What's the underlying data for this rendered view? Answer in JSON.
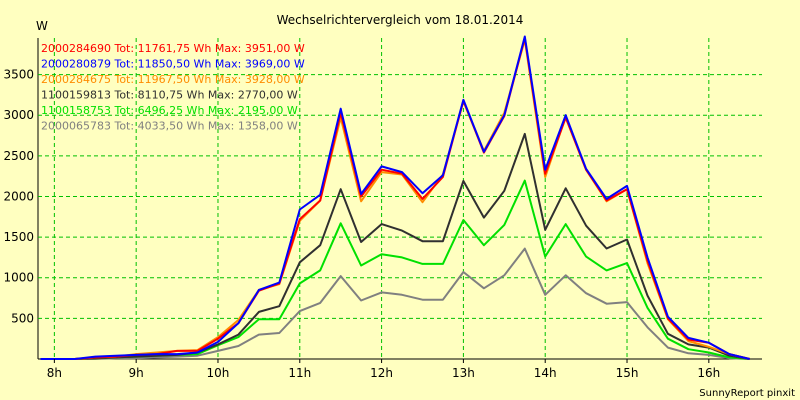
{
  "chart_data": {
    "type": "line",
    "title": "Wechselrichtervergleich vom 18.01.2014",
    "ylabel": "W",
    "xlabel": "",
    "xlim": [
      7.8,
      16.65
    ],
    "ylim": [
      0,
      3950
    ],
    "x_ticks": [
      {
        "value": 8,
        "label": "8h"
      },
      {
        "value": 9,
        "label": "9h"
      },
      {
        "value": 10,
        "label": "10h"
      },
      {
        "value": 11,
        "label": "11h"
      },
      {
        "value": 12,
        "label": "12h"
      },
      {
        "value": 13,
        "label": "13h"
      },
      {
        "value": 14,
        "label": "14h"
      },
      {
        "value": 15,
        "label": "15h"
      },
      {
        "value": 16,
        "label": "16h"
      }
    ],
    "y_ticks": [
      500,
      1000,
      1500,
      2000,
      2500,
      3000,
      3500
    ],
    "y_tick_labels": [
      "500",
      "1000",
      "1500",
      "2000",
      "2500",
      "3000",
      "3500"
    ],
    "grid": true,
    "legend_position": "top-left",
    "x": [
      7.83,
      8.0,
      8.25,
      8.5,
      8.75,
      9.0,
      9.25,
      9.5,
      9.75,
      10.0,
      10.25,
      10.5,
      10.75,
      11.0,
      11.25,
      11.5,
      11.75,
      12.0,
      12.25,
      12.5,
      12.75,
      13.0,
      13.25,
      13.5,
      13.75,
      14.0,
      14.25,
      14.5,
      14.75,
      15.0,
      15.25,
      15.5,
      15.75,
      16.0,
      16.25,
      16.5
    ],
    "series": [
      {
        "name": "2000284690 Tot: 11761,75 Wh Max: 3951,00 W",
        "color": "#ff0000",
        "values": [
          0,
          0,
          0,
          20,
          30,
          50,
          60,
          100,
          100,
          250,
          440,
          840,
          930,
          1720,
          1950,
          3030,
          2000,
          2330,
          2280,
          1970,
          2240,
          3180,
          2540,
          2990,
          3951,
          2280,
          2970,
          2330,
          1950,
          2090,
          1210,
          500,
          240,
          200,
          60,
          0
        ]
      },
      {
        "name": "2000280879 Tot: 11850,50 Wh Max: 3969,00 W",
        "color": "#0000ff",
        "values": [
          0,
          0,
          0,
          30,
          40,
          50,
          60,
          60,
          80,
          210,
          440,
          850,
          940,
          1840,
          2020,
          3080,
          2030,
          2370,
          2300,
          2040,
          2260,
          3190,
          2550,
          3000,
          3969,
          2330,
          3000,
          2340,
          1970,
          2130,
          1250,
          520,
          260,
          200,
          60,
          0
        ]
      },
      {
        "name": "2000284675 Tot: 11967,50 Wh Max: 3928,00 W",
        "color": "#ff8c00",
        "values": [
          0,
          0,
          0,
          20,
          30,
          60,
          80,
          100,
          110,
          270,
          480,
          850,
          920,
          1700,
          1950,
          2970,
          1940,
          2300,
          2270,
          1930,
          2270,
          3170,
          2560,
          3030,
          3928,
          2240,
          2980,
          2330,
          1940,
          2090,
          1180,
          490,
          220,
          150,
          60,
          0
        ]
      },
      {
        "name": "1100159813 Tot: 8110,75 Wh Max: 2770,00 W",
        "color": "#303030",
        "values": [
          0,
          0,
          0,
          10,
          20,
          30,
          40,
          50,
          80,
          180,
          300,
          580,
          650,
          1190,
          1400,
          2090,
          1440,
          1660,
          1580,
          1450,
          1450,
          2190,
          1740,
          2070,
          2770,
          1590,
          2100,
          1640,
          1360,
          1470,
          780,
          310,
          180,
          140,
          40,
          0
        ]
      },
      {
        "name": "1100158753 Tot: 6496,25 Wh Max: 2195,00 W",
        "color": "#00e000",
        "values": [
          0,
          0,
          0,
          10,
          20,
          30,
          40,
          50,
          60,
          170,
          270,
          490,
          490,
          930,
          1090,
          1670,
          1150,
          1290,
          1250,
          1170,
          1170,
          1710,
          1400,
          1650,
          2195,
          1260,
          1660,
          1260,
          1090,
          1180,
          630,
          250,
          120,
          80,
          20,
          0
        ]
      },
      {
        "name": "2000065783 Tot: 4033,50 Wh Max: 1358,00 W",
        "color": "#808080",
        "values": [
          0,
          0,
          0,
          0,
          10,
          10,
          20,
          30,
          40,
          100,
          160,
          300,
          320,
          590,
          690,
          1020,
          720,
          820,
          790,
          730,
          730,
          1070,
          870,
          1030,
          1358,
          790,
          1030,
          810,
          680,
          700,
          390,
          140,
          70,
          50,
          10,
          0
        ]
      }
    ]
  },
  "footer": "SunnyReport pinxit"
}
